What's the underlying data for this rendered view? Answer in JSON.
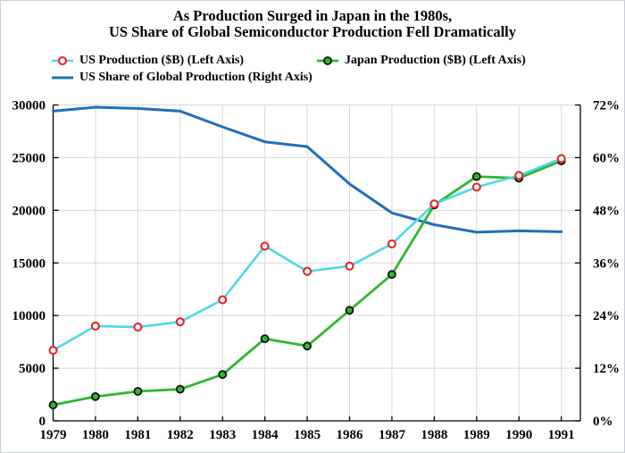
{
  "figure": {
    "title_line1": "As Production Surged in Japan in the 1980s,",
    "title_line2": "US Share of Global Semiconductor Production Fell Dramatically"
  },
  "legend": {
    "items": [
      {
        "label": "US Production ($B) (Left Axis)"
      },
      {
        "label": "Japan Production ($B) (Left Axis)"
      },
      {
        "label": "US Share of Global Production (Right Axis)"
      }
    ]
  },
  "chart_data": {
    "type": "line",
    "title": "As Production Surged in Japan in the 1980s, US Share of Global Semiconductor Production Fell Dramatically",
    "x": [
      1979,
      1980,
      1981,
      1982,
      1983,
      1984,
      1985,
      1986,
      1987,
      1988,
      1989,
      1990,
      1991
    ],
    "series": [
      {
        "id": "us-production",
        "name": "US Production ($B) (Left Axis)",
        "axis": "left",
        "color": "#4cd8e8",
        "line_width": 2.6,
        "marker": {
          "fill": "#ffffff",
          "stroke": "#e8242a",
          "stroke_width": 2.1,
          "radius": 4
        },
        "values": [
          6700,
          9000,
          8900,
          9400,
          11500,
          16600,
          14200,
          14700,
          16800,
          20600,
          22200,
          23300,
          24900
        ]
      },
      {
        "id": "japan-production",
        "name": "Japan Production ($B) (Left Axis)",
        "axis": "left",
        "color": "#2db82d",
        "line_width": 2.8,
        "marker": {
          "fill": "#2db82d",
          "stroke": "#111111",
          "stroke_width": 1.8,
          "radius": 4
        },
        "values": [
          1500,
          2300,
          2800,
          3000,
          4400,
          7800,
          7100,
          10500,
          13900,
          20500,
          23200,
          23050,
          24700
        ]
      },
      {
        "id": "us-share",
        "name": "US Share of Global Production (Right Axis)",
        "axis": "right",
        "color": "#1f6fba",
        "line_width": 3,
        "marker": null,
        "values": [
          70.6,
          71.5,
          71.2,
          70.6,
          67.0,
          63.6,
          62.5,
          54.0,
          47.4,
          44.7,
          43.0,
          43.3,
          43.1
        ]
      }
    ],
    "x_axis": {
      "range": [
        1979,
        1991.45
      ],
      "ticks": [
        1979,
        1980,
        1981,
        1982,
        1983,
        1984,
        1985,
        1986,
        1987,
        1988,
        1989,
        1990,
        1991
      ],
      "tick_labels": [
        "1979",
        "1980",
        "1981",
        "1982",
        "1983",
        "1984",
        "1985",
        "1986",
        "1987",
        "1988",
        "1989",
        "1990",
        "1991"
      ]
    },
    "left_axis": {
      "range": [
        0,
        30000
      ],
      "ticks": [
        0,
        5000,
        10000,
        15000,
        20000,
        25000,
        30000
      ],
      "tick_labels": [
        "0",
        "5000",
        "10000",
        "15000",
        "20000",
        "25000",
        "30000"
      ]
    },
    "right_axis": {
      "range": [
        0,
        72
      ],
      "ticks": [
        0,
        12,
        24,
        36,
        48,
        60,
        72
      ],
      "tick_labels": [
        "0%",
        "12%",
        "24%",
        "36%",
        "48%",
        "60%",
        "72%"
      ]
    },
    "grid": true,
    "legend_position": "top-left",
    "style": {
      "grid_color": "#d7d7d7",
      "spine_color": "#000000",
      "background": "#ffffff"
    }
  }
}
